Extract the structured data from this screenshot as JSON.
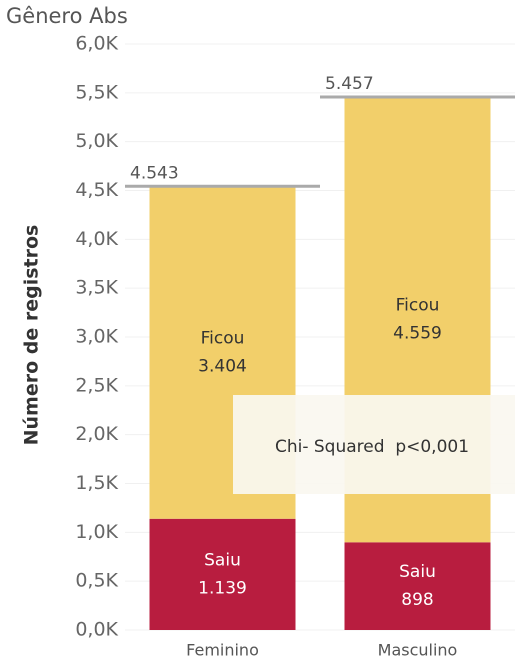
{
  "chart_data": {
    "type": "stacked_bar",
    "title": "Gênero Abs",
    "y_label": "Número de registros",
    "categories": [
      "Feminino",
      "Masculino"
    ],
    "series": [
      {
        "name": "Saiu",
        "color": "#b81d3f",
        "text_color": "#ffffff",
        "values": [
          1139,
          898
        ],
        "value_labels": [
          "1.139",
          "898"
        ]
      },
      {
        "name": "Ficou",
        "color": "#f2cf6a",
        "text_color": "#333333",
        "values": [
          3404,
          4559
        ],
        "value_labels": [
          "3.404",
          "4.559"
        ]
      }
    ],
    "totals": {
      "values": [
        4543,
        5457
      ],
      "value_labels": [
        "4.543",
        "5.457"
      ],
      "color": "#aaaaaa"
    },
    "annotation": "Chi- Squared  p<0,001",
    "ylim": [
      0,
      6000
    ],
    "yticks": [
      {
        "value": 0,
        "label": "0,0K"
      },
      {
        "value": 500,
        "label": "0,5K"
      },
      {
        "value": 1000,
        "label": "1,0K"
      },
      {
        "value": 1500,
        "label": "1,5K"
      },
      {
        "value": 2000,
        "label": "2,0K"
      },
      {
        "value": 2500,
        "label": "2,5K"
      },
      {
        "value": 3000,
        "label": "3,0K"
      },
      {
        "value": 3500,
        "label": "3,5K"
      },
      {
        "value": 4000,
        "label": "4,0K"
      },
      {
        "value": 4500,
        "label": "4,5K"
      },
      {
        "value": 5000,
        "label": "5,0K"
      },
      {
        "value": 5500,
        "label": "5,5K"
      },
      {
        "value": 6000,
        "label": "6,0K"
      }
    ],
    "grid": true
  }
}
